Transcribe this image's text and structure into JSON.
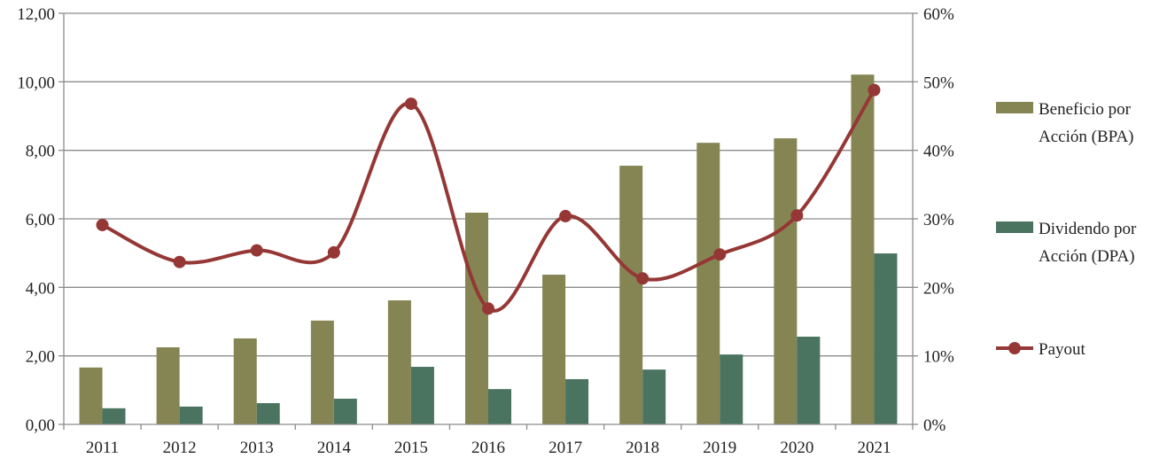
{
  "chart_data": {
    "type": "bar",
    "title": "",
    "categories": [
      "2011",
      "2012",
      "2013",
      "2014",
      "2015",
      "2016",
      "2017",
      "2018",
      "2019",
      "2020",
      "2021"
    ],
    "series": [
      {
        "name": "Beneficio por Acción (BPA)",
        "label_lines": [
          "Beneficio por",
          "Acción (BPA)"
        ],
        "type": "bar",
        "axis": "left",
        "color": "#858553",
        "values": [
          1.66,
          2.25,
          2.51,
          3.03,
          3.62,
          6.18,
          4.37,
          7.55,
          8.22,
          8.35,
          10.21
        ]
      },
      {
        "name": "Dividendo por Acción (DPA)",
        "label_lines": [
          "Dividendo por",
          "Acción (DPA)"
        ],
        "type": "bar",
        "axis": "left",
        "color": "#4A7360",
        "values": [
          0.47,
          0.52,
          0.62,
          0.75,
          1.68,
          1.03,
          1.32,
          1.6,
          2.04,
          2.56,
          4.99
        ]
      },
      {
        "name": "Payout",
        "label_lines": [
          "Payout"
        ],
        "type": "line",
        "axis": "right",
        "color": "#953735",
        "values": [
          29.1,
          23.7,
          25.4,
          25.1,
          46.8,
          16.9,
          30.4,
          21.3,
          24.8,
          30.5,
          48.8
        ]
      }
    ],
    "y_left": {
      "ylim": [
        0,
        12
      ],
      "ticks": [
        "0,00",
        "2,00",
        "4,00",
        "6,00",
        "8,00",
        "10,00",
        "12,00"
      ]
    },
    "y_right": {
      "ylim": [
        0,
        60
      ],
      "ticks": [
        "0%",
        "10%",
        "20%",
        "30%",
        "40%",
        "50%",
        "60%"
      ]
    },
    "grid": true,
    "legend_position": "right"
  }
}
